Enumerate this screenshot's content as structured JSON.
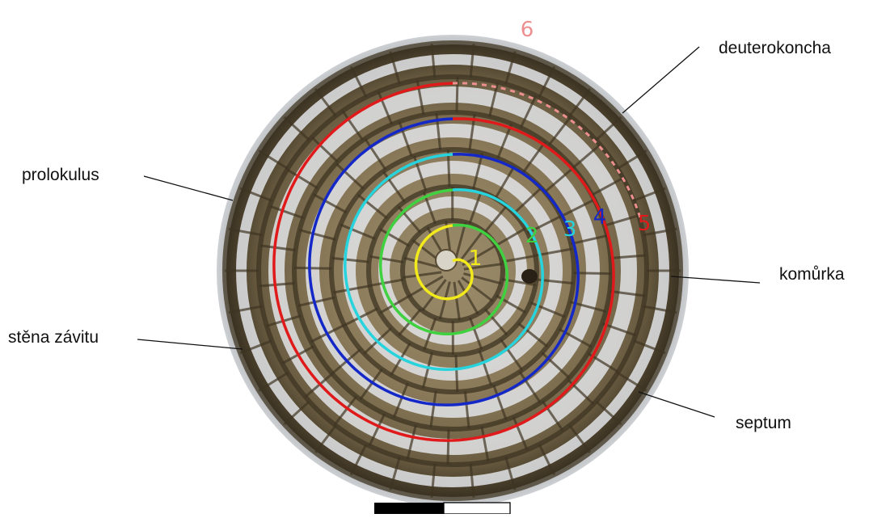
{
  "labels": {
    "deuterokoncha": "deuterokoncha",
    "prolokulus": "prolokulus",
    "komurka": "komůrka",
    "stena_zavitu": "stěna závitu",
    "septum": "septum"
  },
  "whorls": [
    {
      "number": "1",
      "color": "#f2ea1a"
    },
    {
      "number": "2",
      "color": "#3fd13f"
    },
    {
      "number": "3",
      "color": "#27d3dc"
    },
    {
      "number": "4",
      "color": "#1428c8"
    },
    {
      "number": "5",
      "color": "#e01a1a"
    },
    {
      "number": "6",
      "color": "#ee8f8f"
    }
  ],
  "colors": {
    "shell_background": "#8a7a5c",
    "chamber_fill": "#e2e4e8",
    "wall_dark": "#3e3422",
    "leader_line": "#111111",
    "scale_bar_black": "#000000",
    "scale_bar_white": "#ffffff"
  }
}
